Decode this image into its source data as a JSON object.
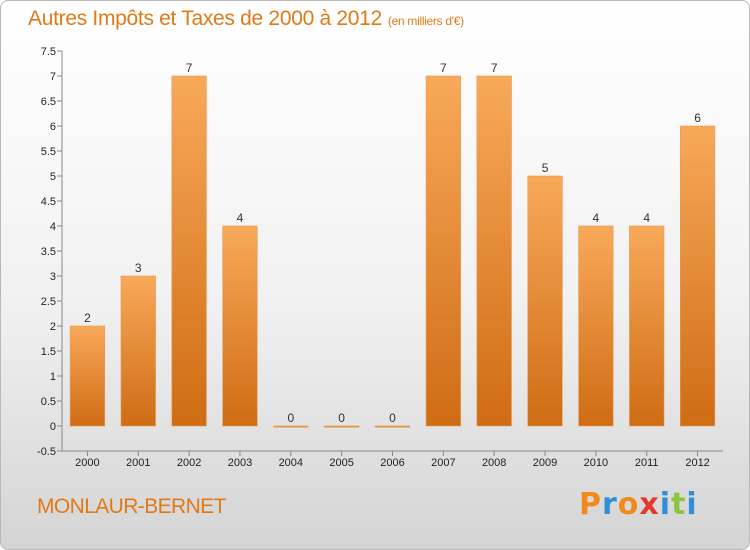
{
  "header": {
    "title": "Autres Impôts et Taxes de 2000 à 2012",
    "unit": "(en milliers d'€)"
  },
  "commune": "MONLAUR-BERNET",
  "brand": {
    "name": "Proxiti",
    "colors": [
      "#f08a1c",
      "#2f8fd8",
      "#f08a1c",
      "#e23a2a",
      "#2f8fd8",
      "#8cc63f",
      "#2f8fd8"
    ]
  },
  "colors": {
    "accent": "#e07a16",
    "bar_light": "#f8a95a",
    "bar_dark": "#cf6c14"
  },
  "chart_data": {
    "type": "bar",
    "categories": [
      "2000",
      "2001",
      "2002",
      "2003",
      "2004",
      "2005",
      "2006",
      "2007",
      "2008",
      "2009",
      "2010",
      "2011",
      "2012"
    ],
    "values": [
      2,
      3,
      7,
      4,
      0,
      0,
      0,
      7,
      7,
      5,
      4,
      4,
      6
    ],
    "y_ticks": [
      "-0.5",
      "0",
      "0.5",
      "1",
      "1.5",
      "2",
      "2.5",
      "3",
      "3.5",
      "4",
      "4.5",
      "5",
      "5.5",
      "6",
      "6.5",
      "7",
      "7.5"
    ],
    "ylim": [
      -0.5,
      7.5
    ],
    "grid": false
  }
}
